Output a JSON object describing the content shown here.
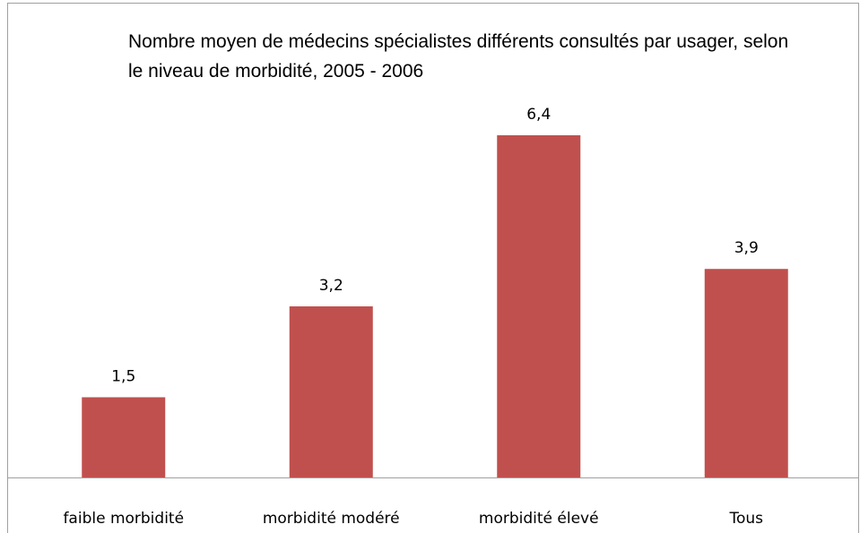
{
  "chart_data": {
    "type": "bar",
    "title": "Nombre moyen de médecins spécialistes différents consultés par usager, selon le niveau de morbidité, 2005 - 2006",
    "categories": [
      "faible morbidité",
      "morbidité modéré",
      "morbidité élevé",
      "Tous"
    ],
    "values": [
      1.5,
      3.2,
      6.4,
      3.9
    ],
    "value_labels": [
      "1,5",
      "3,2",
      "6,4",
      "3,9"
    ],
    "color": "#c0504d"
  }
}
